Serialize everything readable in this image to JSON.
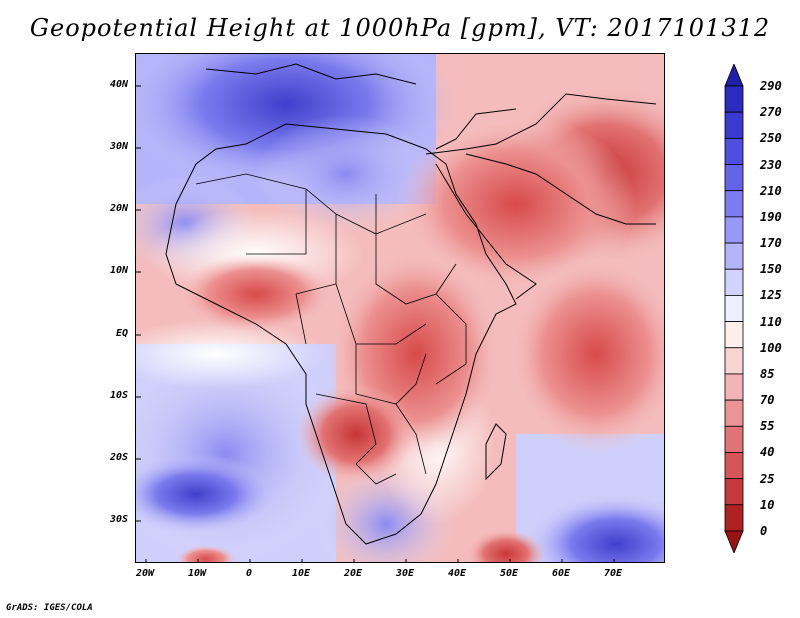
{
  "title": "Geopotential Height at 1000hPa [gpm], VT: 2017101312",
  "footer": "GrADS: IGES/COLA",
  "map": {
    "lat_labels": [
      "40N",
      "30N",
      "20N",
      "10N",
      "EQ",
      "10S",
      "20S",
      "30S"
    ],
    "lon_labels": [
      "20W",
      "10W",
      "0",
      "10E",
      "20E",
      "30E",
      "40E",
      "50E",
      "60E",
      "70E"
    ]
  },
  "colorbar": {
    "levels": [
      "290",
      "270",
      "250",
      "230",
      "210",
      "190",
      "170",
      "150",
      "125",
      "110",
      "100",
      "85",
      "70",
      "55",
      "40",
      "25",
      "10",
      "0"
    ],
    "colors": [
      "#1f1fa8",
      "#2b2bc0",
      "#3a3ad2",
      "#4e4ee0",
      "#6464e8",
      "#7c7cf0",
      "#9898f6",
      "#b4b4fa",
      "#d2d2fc",
      "#eeeefe",
      "#fdeeee",
      "#f9d2d2",
      "#f2b4b4",
      "#ea9494",
      "#e07474",
      "#d45656",
      "#c43a3a",
      "#b02222",
      "#9a1212"
    ]
  }
}
